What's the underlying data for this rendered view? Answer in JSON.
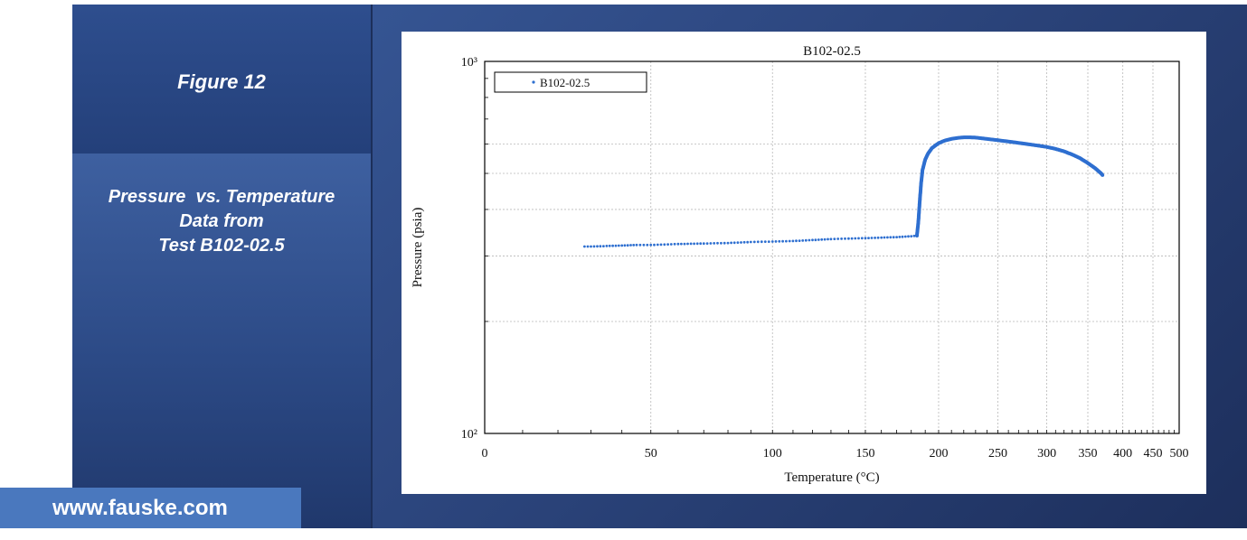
{
  "slide": {
    "figure_label": "Figure 12",
    "subtitle_lines": [
      "Pressure  vs. Temperature",
      "Data from",
      "Test B102-02.5"
    ],
    "website": "www.fauske.com"
  },
  "chart_data": {
    "type": "scatter",
    "title": "B102-02.5",
    "xlabel": "Temperature (°C)",
    "ylabel": "Pressure (psia)",
    "x_scale": "reciprocal-absolute",
    "y_scale": "log",
    "xlim": [
      0,
      500
    ],
    "ylim": [
      100,
      1000
    ],
    "x_tick_labels": [
      "0",
      "50",
      "100",
      "150",
      "200",
      "250",
      "300",
      "350",
      "400",
      "450",
      "500"
    ],
    "y_tick_labels": [
      "10²",
      "10³"
    ],
    "legend": {
      "position": "top-left",
      "entries": [
        "B102-02.5"
      ]
    },
    "grid": true,
    "series": [
      {
        "name": "B102-02.5",
        "color": "#2e6fd0",
        "points": [
          [
            28,
            318
          ],
          [
            30,
            318
          ],
          [
            35,
            319
          ],
          [
            40,
            320
          ],
          [
            45,
            321
          ],
          [
            50,
            321
          ],
          [
            60,
            323
          ],
          [
            70,
            324
          ],
          [
            80,
            325
          ],
          [
            90,
            327
          ],
          [
            100,
            328
          ],
          [
            110,
            329
          ],
          [
            120,
            331
          ],
          [
            130,
            333
          ],
          [
            140,
            334
          ],
          [
            150,
            335
          ],
          [
            160,
            336
          ],
          [
            170,
            337
          ],
          [
            180,
            339
          ],
          [
            184,
            340
          ],
          [
            185,
            370
          ],
          [
            186,
            420
          ],
          [
            187,
            470
          ],
          [
            188,
            510
          ],
          [
            190,
            545
          ],
          [
            192,
            565
          ],
          [
            195,
            585
          ],
          [
            200,
            603
          ],
          [
            205,
            613
          ],
          [
            210,
            619
          ],
          [
            215,
            623
          ],
          [
            220,
            625
          ],
          [
            225,
            625
          ],
          [
            230,
            624
          ],
          [
            240,
            619
          ],
          [
            250,
            614
          ],
          [
            260,
            609
          ],
          [
            270,
            604
          ],
          [
            280,
            599
          ],
          [
            290,
            594
          ],
          [
            300,
            589
          ],
          [
            310,
            582
          ],
          [
            320,
            573
          ],
          [
            330,
            562
          ],
          [
            340,
            549
          ],
          [
            350,
            533
          ],
          [
            360,
            516
          ],
          [
            368,
            500
          ],
          [
            370,
            495
          ]
        ]
      }
    ]
  }
}
